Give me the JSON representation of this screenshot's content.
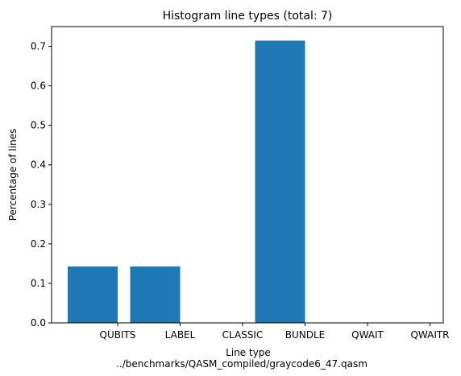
{
  "chart_data": {
    "type": "bar",
    "title": "Histogram line types (total: 7)",
    "xlabel": "Line type",
    "ylabel": "Percentage of lines",
    "subtitle": "../benchmarks/QASM_compiled/graycode6_47.qasm",
    "categories": [
      "QUBITS",
      "LABEL",
      "CLASSIC",
      "BUNDLE",
      "QWAIT",
      "QWAITR"
    ],
    "values": [
      0.142857,
      0.142857,
      0.0,
      0.714286,
      0.0,
      0.0
    ],
    "ylim": [
      0,
      0.75
    ],
    "yticks": [
      0.0,
      0.1,
      0.2,
      0.3,
      0.4,
      0.5,
      0.6,
      0.7
    ],
    "ytick_labels": [
      "0.0",
      "0.1",
      "0.2",
      "0.3",
      "0.4",
      "0.5",
      "0.6",
      "0.7"
    ],
    "grid": false,
    "bar_color": "#1f77b4"
  }
}
